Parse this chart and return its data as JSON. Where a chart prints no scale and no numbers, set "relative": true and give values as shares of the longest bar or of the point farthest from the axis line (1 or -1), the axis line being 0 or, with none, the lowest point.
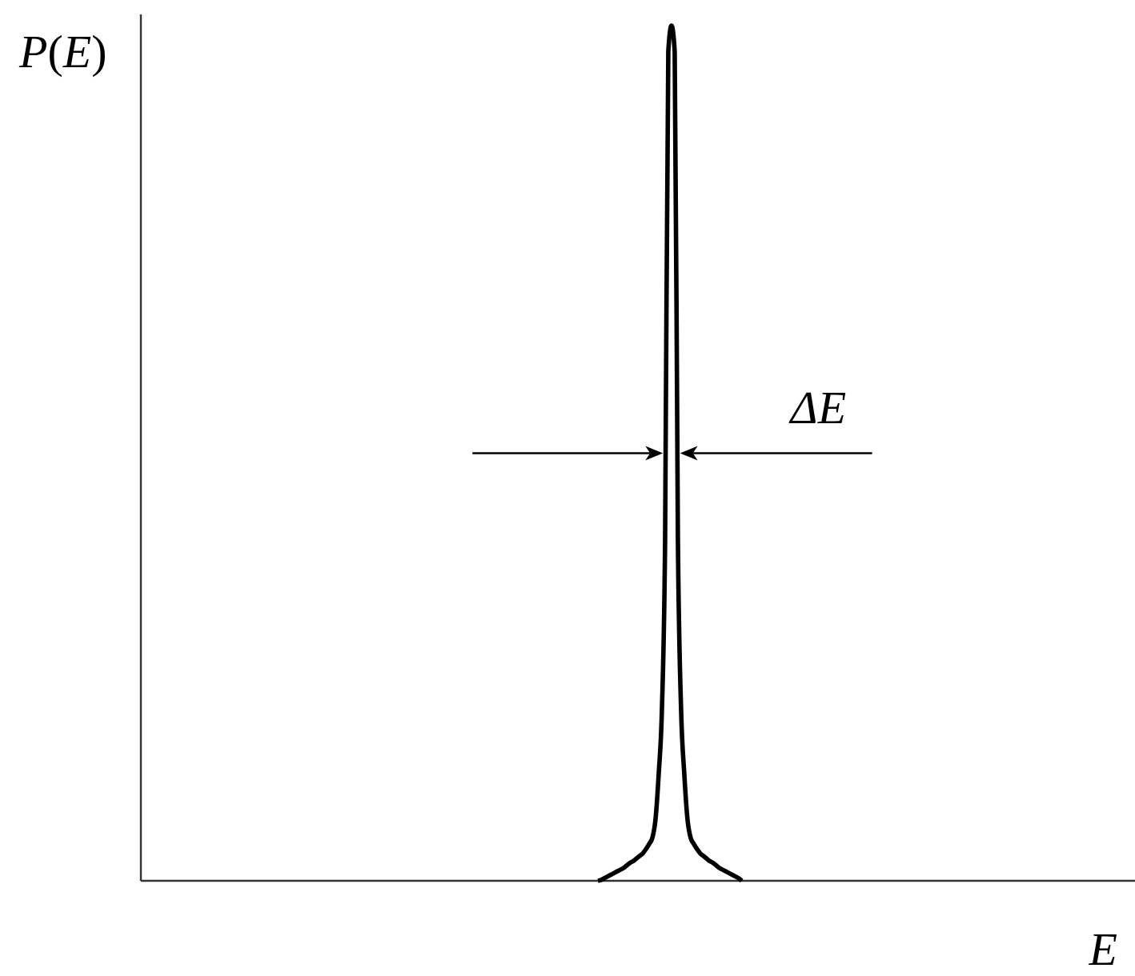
{
  "chart_data": {
    "type": "line",
    "relative": true,
    "xlabel": "E",
    "ylabel": "P(E)",
    "annotations": [
      "ΔE"
    ],
    "color": "#000000",
    "categories": [
      null,
      null,
      null,
      null,
      null,
      null,
      null,
      null,
      null,
      null,
      null,
      null,
      null,
      null,
      null,
      null,
      null,
      null,
      null,
      null,
      null,
      null,
      null,
      null,
      null,
      null,
      null,
      null,
      null,
      null,
      null,
      null,
      null,
      null,
      null,
      null,
      null,
      null,
      null,
      null,
      null,
      null,
      null,
      null,
      null,
      null,
      null,
      null,
      null,
      null,
      null,
      null,
      null,
      null,
      null,
      null,
      null,
      null,
      null,
      null,
      null,
      null,
      null,
      null,
      null,
      null,
      null,
      null,
      null,
      null,
      null,
      null,
      null,
      null,
      null,
      null,
      null,
      null,
      null,
      null,
      null,
      null,
      null,
      null,
      null,
      null,
      null,
      null,
      null,
      null,
      null,
      null,
      null,
      null,
      null,
      null,
      null,
      null,
      null,
      null,
      null,
      null,
      null,
      null,
      null,
      null,
      null,
      null,
      null,
      null,
      null,
      null,
      null,
      null,
      null,
      null,
      null,
      null,
      null,
      null,
      null,
      null,
      null,
      null,
      null,
      null,
      null,
      null,
      null,
      null,
      null,
      null,
      null,
      null,
      null,
      null,
      null,
      null,
      null,
      null,
      null,
      null,
      null,
      null,
      null,
      null,
      null,
      null,
      null,
      null,
      null,
      null,
      null,
      null,
      null,
      null,
      null,
      null,
      null,
      null,
      null,
      null,
      null,
      null,
      null,
      null,
      null,
      null,
      null,
      null,
      null,
      null,
      null,
      null,
      null,
      null,
      null,
      null,
      null,
      null,
      null,
      null,
      null,
      null,
      null,
      null,
      null,
      null,
      null,
      null,
      null,
      null,
      null,
      null,
      null,
      null,
      null,
      null,
      null,
      null,
      null,
      null,
      null,
      null,
      null,
      null,
      null,
      null,
      null,
      null,
      null,
      null,
      null,
      null,
      null,
      null,
      null,
      null,
      null,
      null,
      null,
      null,
      null,
      null,
      null,
      null,
      null,
      null,
      null,
      null,
      null,
      null,
      null,
      null,
      null,
      null,
      null,
      null,
      null,
      null,
      null,
      null,
      null,
      null,
      null,
      null,
      null,
      null,
      null,
      null,
      null,
      null,
      null,
      null,
      null,
      null,
      null,
      null,
      null,
      null,
      null,
      null,
      null,
      null,
      null,
      null,
      null,
      null,
      null,
      null,
      null,
      null,
      null,
      null,
      null,
      null,
      null,
      null,
      null,
      null,
      null,
      null,
      null,
      null,
      null,
      null,
      null,
      null,
      null,
      null,
      null,
      null,
      null,
      null,
      null,
      null,
      null,
      null,
      null,
      null,
      null,
      null,
      null,
      null,
      null,
      null,
      null,
      null,
      null,
      null,
      null,
      null
    ],
    "values": [
      null,
      null,
      null,
      null,
      null,
      null,
      null,
      null,
      null,
      null,
      null,
      null,
      null,
      null,
      null,
      null,
      null,
      null,
      null,
      null,
      null,
      null,
      null,
      null,
      null,
      null,
      null,
      null,
      null,
      null,
      null,
      null,
      null,
      null,
      null,
      null,
      null,
      null,
      null,
      null,
      null,
      null,
      null,
      null,
      null,
      null,
      null,
      null,
      null,
      null,
      null,
      null,
      null,
      null,
      null,
      null,
      null,
      null,
      null,
      null,
      null,
      null,
      null,
      null,
      null,
      null,
      null,
      null,
      null,
      null,
      null,
      null,
      null,
      null,
      null,
      null,
      null,
      null,
      null,
      null,
      null,
      null,
      null,
      null,
      null,
      null,
      null,
      null,
      null,
      null,
      null,
      null,
      null,
      null,
      null,
      null,
      null,
      null,
      null,
      null,
      null,
      null,
      null,
      null,
      null,
      null,
      null,
      null,
      null,
      null,
      null,
      null,
      null,
      null,
      null,
      null,
      null,
      null,
      null,
      null,
      null,
      null,
      null,
      null,
      null,
      null,
      null,
      null,
      null,
      null,
      null,
      null,
      null,
      null,
      null,
      null,
      null,
      null,
      null,
      null,
      null,
      null,
      null,
      0,
      0.001,
      0.003,
      0.005,
      0.007,
      0.009,
      0.011,
      0.013,
      0.015,
      0.018,
      0.021,
      0.023,
      0.026,
      0.029,
      0.032,
      0.037,
      0.043,
      0.05,
      0.072,
      0.125,
      0.2,
      0.4,
      0.97,
      1,
      0.97,
      0.4,
      0.2,
      0.125,
      0.072,
      0.05,
      0.043,
      0.037,
      0.032,
      0.029,
      0.026,
      0.023,
      0.021,
      0.018,
      0.015,
      0.013,
      0.011,
      0.009,
      0.007,
      0.005,
      0.003,
      0,
      null,
      null,
      null,
      null,
      null,
      null,
      null,
      null,
      null,
      null,
      null,
      null,
      null,
      null,
      null,
      null,
      null,
      null,
      null,
      null,
      null,
      null,
      null,
      null,
      null,
      null,
      null,
      null,
      null,
      null,
      null,
      null,
      null,
      null,
      null,
      null,
      null,
      null,
      null,
      null,
      null,
      null,
      null,
      null,
      null,
      null,
      null,
      null,
      null,
      null,
      null,
      null,
      null,
      null,
      null,
      null,
      null,
      null,
      null,
      null,
      null,
      null,
      null,
      null,
      null,
      null,
      null,
      null,
      null,
      null,
      null,
      null,
      null,
      null,
      null,
      null,
      null,
      null,
      null,
      null,
      null,
      null,
      null,
      null,
      null,
      null,
      null,
      null,
      null,
      null,
      null,
      null,
      null,
      null,
      null,
      null,
      null,
      null,
      null,
      null,
      null,
      null,
      null,
      null,
      null,
      null,
      null,
      null,
      null,
      null,
      null,
      null,
      null,
      null,
      null,
      null,
      null,
      null,
      null,
      null,
      null,
      null,
      null
    ]
  }
}
